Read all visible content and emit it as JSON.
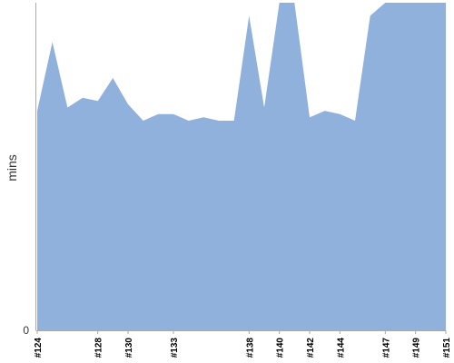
{
  "chart_data": {
    "type": "area",
    "title": "",
    "xlabel": "",
    "ylabel": "mins",
    "yticks": [
      "0"
    ],
    "ylim": [
      0,
      100
    ],
    "grid": false,
    "legend": "none",
    "color": "#8fb1db",
    "axis_color": "#aaaaaa",
    "x": [
      "#124",
      "#125",
      "#126",
      "#127",
      "#128",
      "#129",
      "#130",
      "#131",
      "#132",
      "#133",
      "#134",
      "#135",
      "#136",
      "#137",
      "#138",
      "#139",
      "#140",
      "#141",
      "#142",
      "#143",
      "#144",
      "#145",
      "#146",
      "#147",
      "#148",
      "#149",
      "#150",
      "#151"
    ],
    "xtick_labels": [
      "#124",
      "#128",
      "#130",
      "#133",
      "#138",
      "#140",
      "#142",
      "#144",
      "#147",
      "#149",
      "#151"
    ],
    "series": [
      {
        "values": [
          67,
          88,
          68,
          71,
          70,
          77,
          69,
          64,
          66,
          66,
          64,
          65,
          64,
          64,
          96,
          68,
          100,
          100,
          65,
          67,
          66,
          64,
          96,
          100,
          100,
          100,
          100,
          100
        ]
      }
    ]
  }
}
